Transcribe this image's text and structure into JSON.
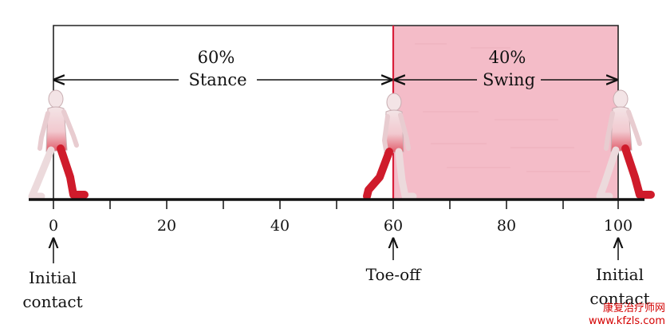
{
  "phases": {
    "stance": {
      "percent": "60%",
      "name": "Stance"
    },
    "swing": {
      "percent": "40%",
      "name": "Swing"
    }
  },
  "axis": {
    "ticks": [
      "0",
      "20",
      "40",
      "60",
      "80",
      "100"
    ]
  },
  "events": {
    "initial_contact_start": {
      "line1": "Initial",
      "line2": "contact"
    },
    "toe_off": {
      "line1": "Toe-off"
    },
    "initial_contact_end": {
      "line1": "Initial",
      "line2": "contact"
    }
  },
  "watermark": {
    "name": "康复治疗师网",
    "url": "www.kfzls.com"
  },
  "colors": {
    "swing_fill": "#f4bcc8",
    "toe_off_line": "#d8203a",
    "leg_red": "#cf1b2b",
    "axis": "#111111"
  }
}
